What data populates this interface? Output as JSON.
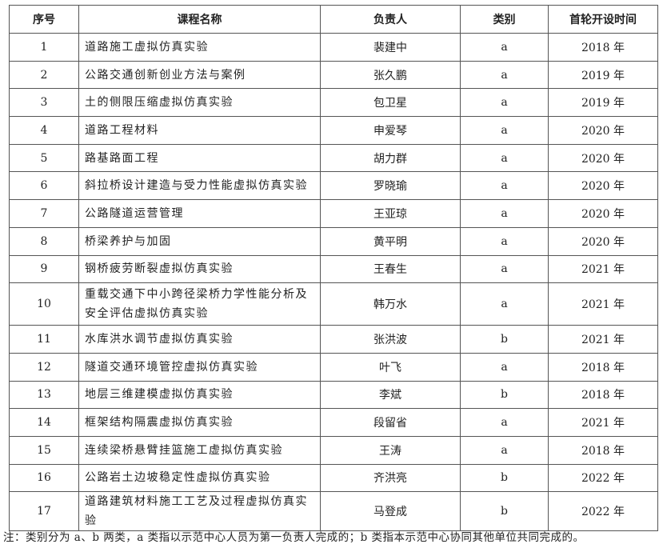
{
  "table": {
    "headers": [
      "序号",
      "课程名称",
      "负责人",
      "类别",
      "首轮开设时间"
    ],
    "rows": [
      {
        "no": "1",
        "name": "道路施工虚拟仿真实验",
        "lead": "裴建中",
        "cat": "a",
        "year": "2018 年"
      },
      {
        "no": "2",
        "name": "公路交通创新创业方法与案例",
        "lead": "张久鹏",
        "cat": "a",
        "year": "2019 年"
      },
      {
        "no": "3",
        "name": "土的侧限压缩虚拟仿真实验",
        "lead": "包卫星",
        "cat": "a",
        "year": "2019 年"
      },
      {
        "no": "4",
        "name": "道路工程材料",
        "lead": "申爱琴",
        "cat": "a",
        "year": "2020 年"
      },
      {
        "no": "5",
        "name": "路基路面工程",
        "lead": "胡力群",
        "cat": "a",
        "year": "2020 年"
      },
      {
        "no": "6",
        "name": "斜拉桥设计建造与受力性能虚拟仿真实验",
        "lead": "罗晓瑜",
        "cat": "a",
        "year": "2020 年"
      },
      {
        "no": "7",
        "name": "公路隧道运营管理",
        "lead": "王亚琼",
        "cat": "a",
        "year": "2020 年"
      },
      {
        "no": "8",
        "name": "桥梁养护与加固",
        "lead": "黄平明",
        "cat": "a",
        "year": "2020 年"
      },
      {
        "no": "9",
        "name": "钢桥疲劳断裂虚拟仿真实验",
        "lead": "王春生",
        "cat": "a",
        "year": "2021 年"
      },
      {
        "no": "10",
        "name": "重载交通下中小跨径梁桥力学性能分析及安全评估虚拟仿真实验",
        "lead": "韩万水",
        "cat": "a",
        "year": "2021 年"
      },
      {
        "no": "11",
        "name": "水库洪水调节虚拟仿真实验",
        "lead": "张洪波",
        "cat": "b",
        "year": "2021 年"
      },
      {
        "no": "12",
        "name": "隧道交通环境管控虚拟仿真实验",
        "lead": "叶飞",
        "cat": "a",
        "year": "2018 年"
      },
      {
        "no": "13",
        "name": "地层三维建模虚拟仿真实验",
        "lead": "李斌",
        "cat": "b",
        "year": "2018 年"
      },
      {
        "no": "14",
        "name": "框架结构隔震虚拟仿真实验",
        "lead": "段留省",
        "cat": "a",
        "year": "2021 年"
      },
      {
        "no": "15",
        "name": "连续梁桥悬臂挂篮施工虚拟仿真实验",
        "lead": "王涛",
        "cat": "a",
        "year": "2018 年"
      },
      {
        "no": "16",
        "name": "公路岩土边坡稳定性虚拟仿真实验",
        "lead": "齐洪亮",
        "cat": "b",
        "year": "2022 年"
      },
      {
        "no": "17",
        "name": "道路建筑材料施工工艺及过程虚拟仿真实验",
        "lead": "马登成",
        "cat": "b",
        "year": "2022 年"
      }
    ]
  },
  "note": "注：类别分为 a、b 两类，a 类指以示范中心人员为第一负责人完成的；b 类指本示范中心协同其他单位共同完成的。"
}
